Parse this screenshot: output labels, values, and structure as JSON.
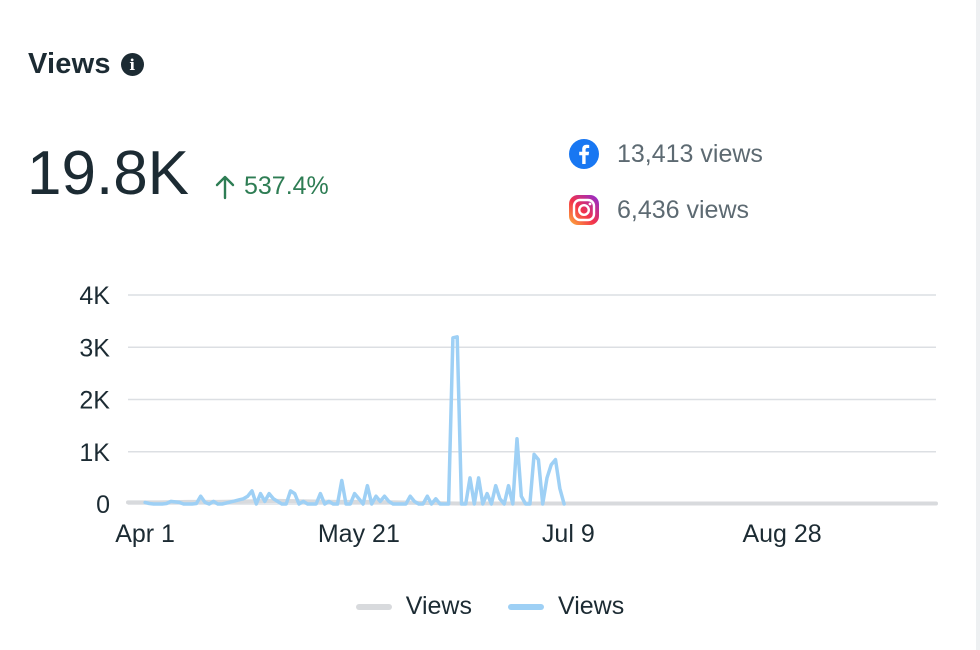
{
  "header": {
    "title": "Views",
    "total": "19.8K",
    "change": "537.4%",
    "change_color": "#2e7d54"
  },
  "platforms": [
    {
      "name": "facebook",
      "icon": "facebook-icon",
      "views": "13,413 views",
      "color": "#1877f2"
    },
    {
      "name": "instagram",
      "icon": "instagram-icon",
      "views": "6,436 views"
    }
  ],
  "chart_data": {
    "type": "line",
    "ylim": [
      0,
      4000
    ],
    "yticks": [
      0,
      1000,
      2000,
      3000,
      4000
    ],
    "ytick_labels": [
      "0",
      "1K",
      "2K",
      "3K",
      "4K"
    ],
    "xlim": [
      "2024-03-28",
      "2024-10-03"
    ],
    "xticks": [
      "2024-04-01",
      "2024-05-21",
      "2024-07-09",
      "2024-08-28"
    ],
    "xtick_labels": [
      "Apr 1",
      "May 21",
      "Jul 9",
      "Aug 28"
    ],
    "grid": true,
    "legend_position": "bottom-center",
    "series": [
      {
        "name": "Views",
        "color": "#d8dadd",
        "x": [
          "2024-03-28",
          "2024-04-04",
          "2024-04-11",
          "2024-04-18",
          "2024-04-25",
          "2024-05-02",
          "2024-05-09",
          "2024-05-16",
          "2024-05-23",
          "2024-05-30",
          "2024-06-06",
          "2024-06-13",
          "2024-06-20",
          "2024-06-27",
          "2024-07-04",
          "2024-07-11",
          "2024-07-18",
          "2024-07-25",
          "2024-08-01",
          "2024-08-08",
          "2024-08-15",
          "2024-08-22",
          "2024-08-29",
          "2024-09-05",
          "2024-09-12",
          "2024-09-19",
          "2024-09-26",
          "2024-10-03"
        ],
        "y": [
          30,
          30,
          40,
          40,
          50,
          60,
          50,
          40,
          40,
          30,
          20,
          10,
          10,
          10,
          10,
          10,
          10,
          10,
          10,
          10,
          10,
          10,
          10,
          10,
          10,
          10,
          10,
          10
        ]
      },
      {
        "name": "Views",
        "color": "#9ed0f5",
        "x": [
          "2024-04-01",
          "2024-04-02",
          "2024-04-03",
          "2024-04-04",
          "2024-04-05",
          "2024-04-06",
          "2024-04-07",
          "2024-04-08",
          "2024-04-09",
          "2024-04-10",
          "2024-04-11",
          "2024-04-12",
          "2024-04-13",
          "2024-04-14",
          "2024-04-15",
          "2024-04-16",
          "2024-04-17",
          "2024-04-18",
          "2024-04-19",
          "2024-04-20",
          "2024-04-21",
          "2024-04-22",
          "2024-04-23",
          "2024-04-24",
          "2024-04-25",
          "2024-04-26",
          "2024-04-27",
          "2024-04-28",
          "2024-04-29",
          "2024-04-30",
          "2024-05-01",
          "2024-05-02",
          "2024-05-03",
          "2024-05-04",
          "2024-05-05",
          "2024-05-06",
          "2024-05-07",
          "2024-05-08",
          "2024-05-09",
          "2024-05-10",
          "2024-05-11",
          "2024-05-12",
          "2024-05-13",
          "2024-05-14",
          "2024-05-15",
          "2024-05-16",
          "2024-05-17",
          "2024-05-18",
          "2024-05-19",
          "2024-05-20",
          "2024-05-21",
          "2024-05-22",
          "2024-05-23",
          "2024-05-24",
          "2024-05-25",
          "2024-05-26",
          "2024-05-27",
          "2024-05-28",
          "2024-05-29",
          "2024-05-30",
          "2024-05-31",
          "2024-06-01",
          "2024-06-02",
          "2024-06-03",
          "2024-06-04",
          "2024-06-05",
          "2024-06-06",
          "2024-06-07",
          "2024-06-08",
          "2024-06-09",
          "2024-06-10",
          "2024-06-11",
          "2024-06-12",
          "2024-06-13",
          "2024-06-14",
          "2024-06-15",
          "2024-06-16",
          "2024-06-17",
          "2024-06-18",
          "2024-06-19",
          "2024-06-20",
          "2024-06-21",
          "2024-06-22",
          "2024-06-23",
          "2024-06-24",
          "2024-06-25",
          "2024-06-26",
          "2024-06-27",
          "2024-06-28",
          "2024-06-29",
          "2024-06-30",
          "2024-07-01",
          "2024-07-02",
          "2024-07-03",
          "2024-07-04",
          "2024-07-05",
          "2024-07-06",
          "2024-07-07",
          "2024-07-08"
        ],
        "y": [
          30,
          10,
          0,
          0,
          0,
          10,
          50,
          40,
          30,
          0,
          0,
          0,
          10,
          150,
          30,
          0,
          50,
          0,
          0,
          20,
          40,
          60,
          80,
          100,
          150,
          250,
          0,
          200,
          50,
          200,
          100,
          50,
          0,
          0,
          250,
          200,
          0,
          50,
          0,
          0,
          0,
          200,
          0,
          50,
          0,
          0,
          450,
          0,
          0,
          200,
          100,
          0,
          350,
          0,
          150,
          50,
          150,
          50,
          0,
          0,
          0,
          0,
          150,
          50,
          0,
          0,
          150,
          0,
          100,
          0,
          0,
          0,
          3180,
          3200,
          0,
          0,
          500,
          0,
          500,
          0,
          200,
          0,
          350,
          100,
          0,
          350,
          0,
          1250,
          150,
          0,
          0,
          950,
          850,
          0,
          500,
          750,
          850,
          300,
          0
        ]
      }
    ]
  },
  "legend": [
    {
      "label": "Views",
      "color": "#d8dadd"
    },
    {
      "label": "Views",
      "color": "#9ed0f5"
    }
  ]
}
